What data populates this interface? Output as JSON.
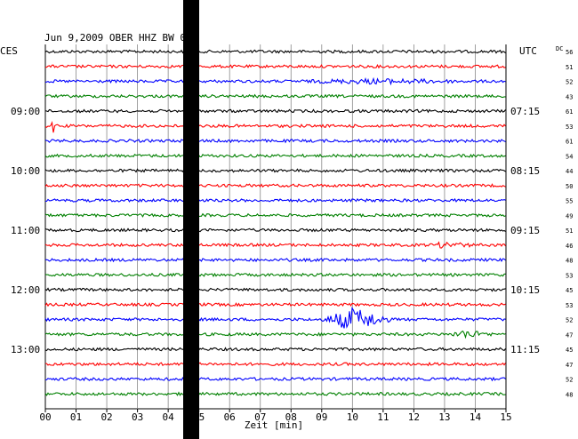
{
  "chart_data": {
    "type": "line",
    "title": "Jun 9,2009   OBER HHZ BW 01",
    "xlabel": "Zeit [min]",
    "xlim": [
      0,
      15
    ],
    "x_ticks": [
      "00",
      "01",
      "02",
      "03",
      "04",
      "05",
      "06",
      "07",
      "08",
      "09",
      "10",
      "11",
      "12",
      "13",
      "14",
      "15"
    ],
    "left_axis_label": "CES",
    "right_axis_label": "UTC",
    "dc_label": "DC",
    "left_time_labels": [
      {
        "label": "09:00",
        "trace": 4
      },
      {
        "label": "10:00",
        "trace": 8
      },
      {
        "label": "11:00",
        "trace": 12
      },
      {
        "label": "12:00",
        "trace": 16
      },
      {
        "label": "13:00",
        "trace": 20
      }
    ],
    "right_time_labels": [
      {
        "label": "07:15",
        "trace": 4
      },
      {
        "label": "08:15",
        "trace": 8
      },
      {
        "label": "09:15",
        "trace": 12
      },
      {
        "label": "10:15",
        "trace": 16
      },
      {
        "label": "11:15",
        "trace": 20
      }
    ],
    "trace_colors": [
      "#000000",
      "#ff0000",
      "#0000ff",
      "#008000"
    ],
    "trace_minutes_per_line": 15,
    "trace_count": 24,
    "dc_offsets": [
      "56",
      "51",
      "52",
      "43",
      "61",
      "53",
      "61",
      "54",
      "44",
      "50",
      "55",
      "49",
      "51",
      "46",
      "48",
      "53",
      "45",
      "53",
      "52",
      "47",
      "45",
      "47",
      "52",
      "48"
    ],
    "disturbance_window_min": [
      4.55,
      4.95
    ],
    "events": [
      {
        "trace": 18,
        "start_min": 9.0,
        "peak_min": 10.0,
        "end_min": 11.3,
        "peak_amplitude": 1.0
      },
      {
        "trace": 19,
        "start_min": 13.2,
        "peak_min": 13.6,
        "end_min": 14.6,
        "peak_amplitude": 0.3
      },
      {
        "trace": 2,
        "start_min": 8.2,
        "peak_min": 10.7,
        "end_min": 14.0,
        "peak_amplitude": 0.15
      },
      {
        "trace": 13,
        "start_min": 12.5,
        "peak_min": 13.0,
        "end_min": 14.0,
        "peak_amplitude": 0.2
      },
      {
        "trace": 5,
        "start_min": 0.2,
        "peak_min": 0.25,
        "end_min": 0.4,
        "peak_amplitude": 0.6
      }
    ]
  }
}
